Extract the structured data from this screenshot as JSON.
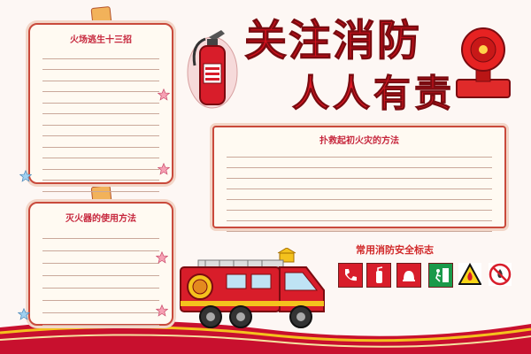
{
  "title": {
    "line1": "关注消防",
    "line2": "人人有责"
  },
  "escape_panel": {
    "heading": "火场逃生十三招"
  },
  "extinguisher_panel": {
    "heading": "灭火器的使用方法"
  },
  "early_fire_panel": {
    "heading": "扑救起初火灾的方法"
  },
  "signs": {
    "heading": "常用消防安全标志"
  },
  "colors": {
    "red": "#d1101d",
    "dark_red": "#7a0b10",
    "band": "#c8102e",
    "yellow": "#f4c21d"
  }
}
